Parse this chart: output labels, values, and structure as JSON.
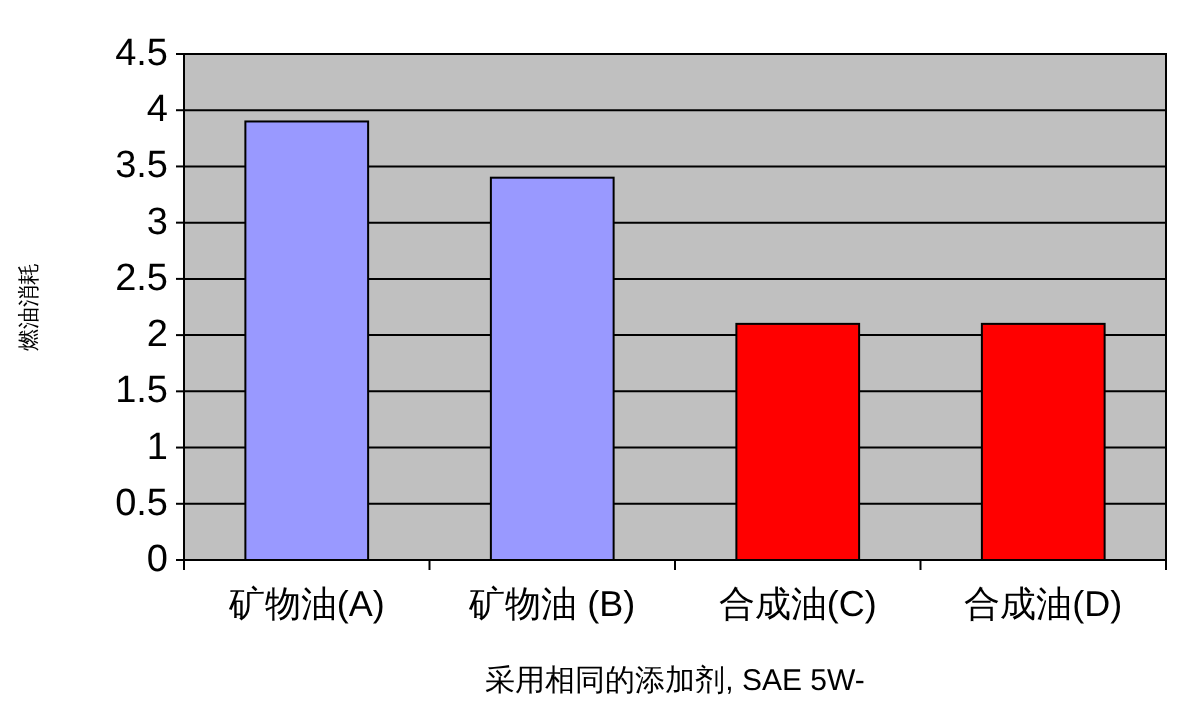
{
  "chart_data": {
    "type": "bar",
    "categories": [
      "矿物油(A)",
      "矿物油 (B)",
      "合成油(C)",
      "合成油(D)"
    ],
    "values": [
      3.9,
      3.4,
      2.1,
      2.1
    ],
    "colors": [
      "#9999ff",
      "#9999ff",
      "#ff0000",
      "#ff0000"
    ],
    "xlabel": "采用相同的添加剂, SAE 5W-",
    "ylabel": "燃油消耗",
    "ylim": [
      0,
      4.5
    ],
    "yticks": [
      0,
      0.5,
      1,
      1.5,
      2,
      2.5,
      3,
      3.5,
      4,
      4.5
    ],
    "grid": "y"
  }
}
